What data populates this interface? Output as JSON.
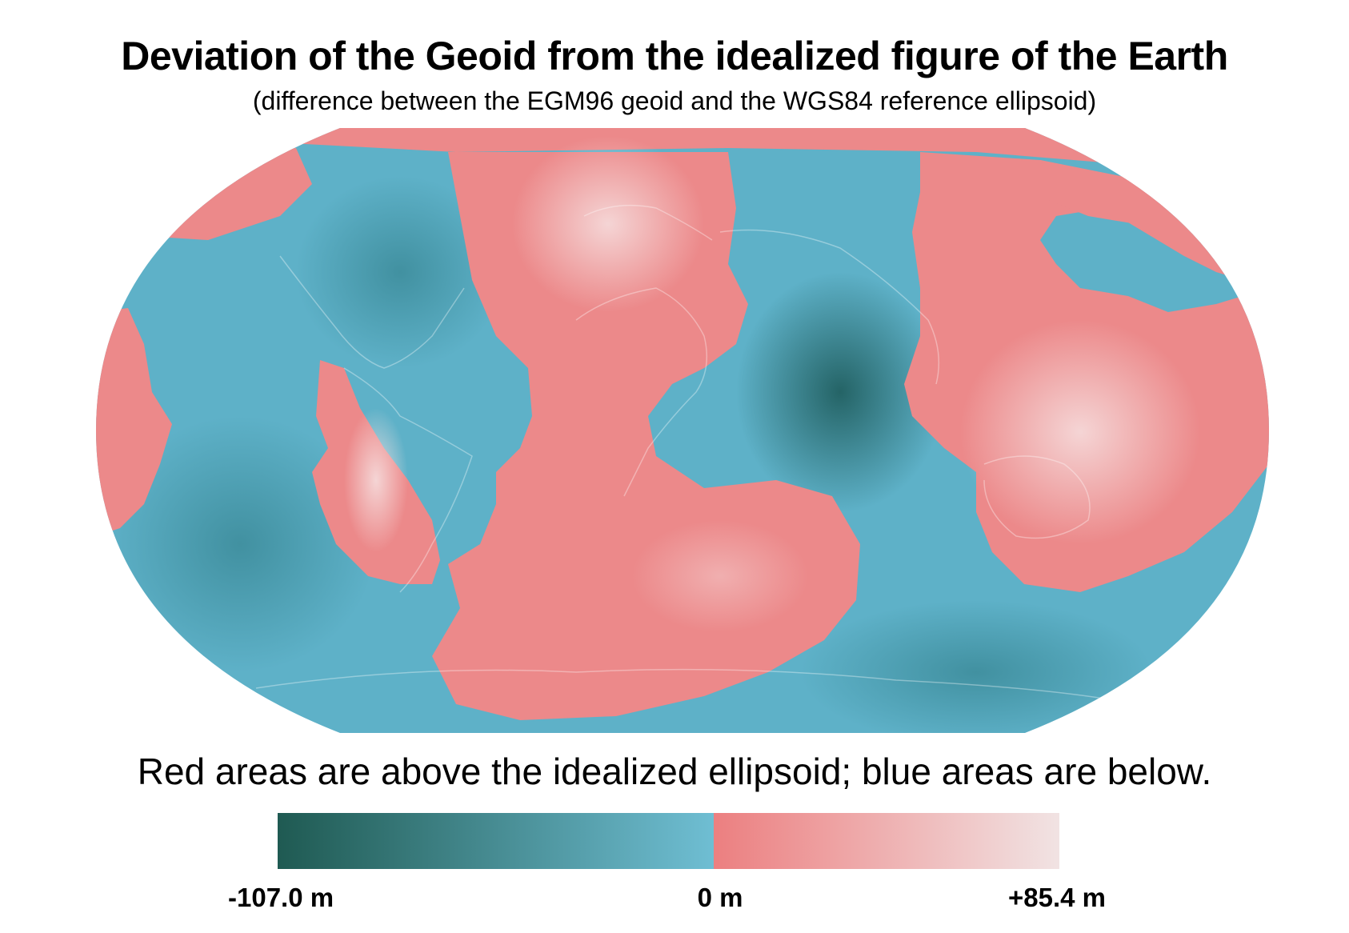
{
  "title": "Deviation of the Geoid from the idealized figure of the Earth",
  "subtitle": "(difference between the EGM96 geoid and the WGS84 reference ellipsoid)",
  "caption": "Red areas are above the idealized ellipsoid; blue areas are below.",
  "legend": {
    "min_label": "-107.0 m",
    "zero_label": "0 m",
    "max_label": "+85.4 m",
    "min_value": -107.0,
    "zero_value": 0,
    "max_value": 85.4,
    "colors": {
      "negative_min": "#1f5a52",
      "negative_zero": "#6fbed3",
      "positive_zero": "#ec7f80",
      "positive_max": "#f1e3e3"
    }
  },
  "map": {
    "projection": "elliptical world map",
    "ocean_below_color": "#5db0c8",
    "above_color": "#ec8a8b",
    "highlight_color": "#f3d7d7",
    "deep_low_color": "#2c6f76"
  }
}
